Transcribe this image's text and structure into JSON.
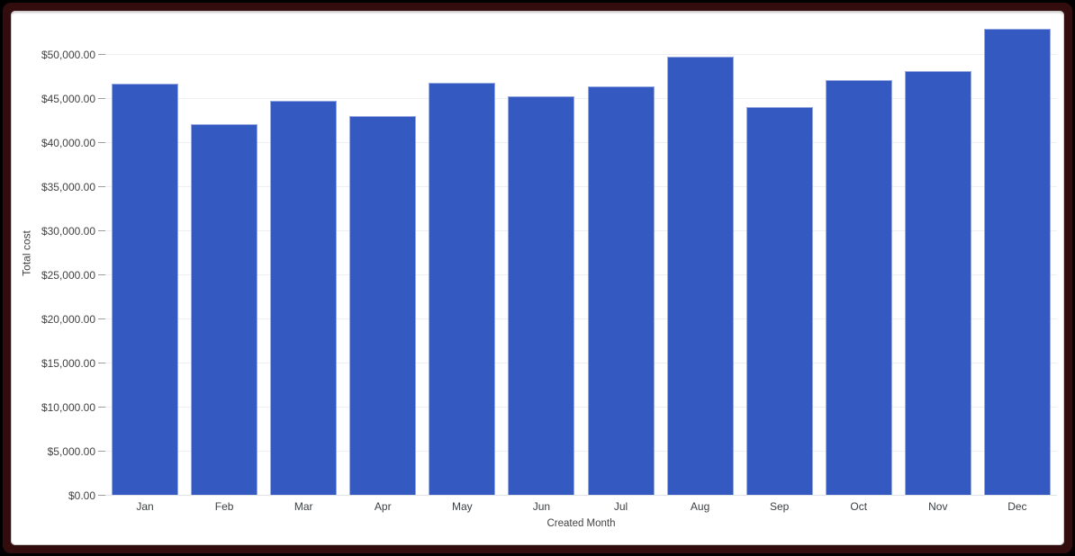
{
  "frame": {
    "outer_color": "#000000",
    "border_color": "#330d0d",
    "canvas_background": "#ffffff"
  },
  "chart_data": {
    "type": "bar",
    "title": "",
    "xlabel": "Created Month",
    "ylabel": "Total cost",
    "categories": [
      "Jan",
      "Feb",
      "Mar",
      "Apr",
      "May",
      "Jun",
      "Jul",
      "Aug",
      "Sep",
      "Oct",
      "Nov",
      "Dec"
    ],
    "values": [
      46700,
      42100,
      44750,
      43100,
      46800,
      45300,
      46400,
      49750,
      44050,
      47100,
      48150,
      52950
    ],
    "y_ticks": [
      {
        "value": 0,
        "label": "$0.00"
      },
      {
        "value": 5000,
        "label": "$5,000.00"
      },
      {
        "value": 10000,
        "label": "$10,000.00"
      },
      {
        "value": 15000,
        "label": "$15,000.00"
      },
      {
        "value": 20000,
        "label": "$20,000.00"
      },
      {
        "value": 25000,
        "label": "$25,000.00"
      },
      {
        "value": 30000,
        "label": "$30,000.00"
      },
      {
        "value": 35000,
        "label": "$35,000.00"
      },
      {
        "value": 40000,
        "label": "$40,000.00"
      },
      {
        "value": 45000,
        "label": "$45,000.00"
      },
      {
        "value": 50000,
        "label": "$50,000.00"
      }
    ],
    "ylim": [
      0,
      55000
    ],
    "grid": true,
    "legend": "none",
    "colors": {
      "bar": "#3459c1",
      "bar_edge": "#96aae1",
      "grid": "#efefef",
      "baseline": "#dfe2e8",
      "tick": "#9e9e9e",
      "value_label": "#424242",
      "category_label": "#3c4043",
      "axis_title": "#424242"
    }
  }
}
